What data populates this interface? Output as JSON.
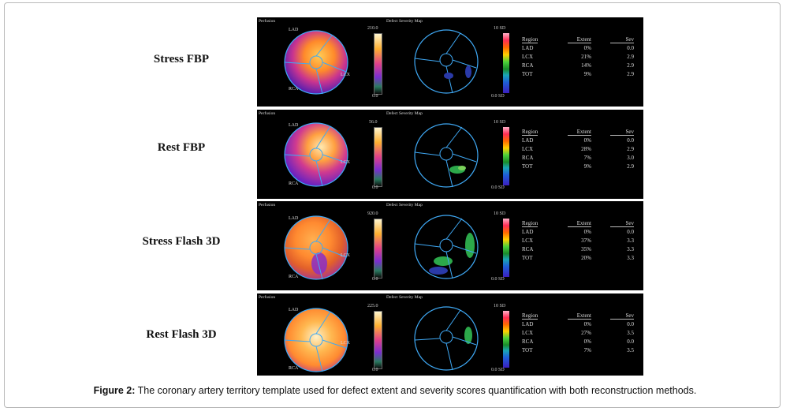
{
  "caption": {
    "label": "Figure 2:",
    "text": " The coronary artery territory template used for defect extent and severity scores quantification with both reconstruction methods."
  },
  "panel_titles": {
    "perfusion": "Perfusion",
    "defect_map": "Defect Severity Map"
  },
  "territory_labels": {
    "lad": "LAD",
    "lcx": "LCX",
    "rca": "RCA"
  },
  "severity_scale": {
    "top": "10 SD",
    "bottom": "0.0 SD"
  },
  "table_headers": {
    "region": "Region",
    "extent": "Extent",
    "sev": "Sev"
  },
  "colors": {
    "panel_bg": "#000000",
    "contour": "#3fa9f5",
    "defect": "#2ca84a"
  },
  "rows": [
    {
      "label": "Stress FBP",
      "scale_max": "210.0",
      "scale_min": "0.0",
      "table": [
        {
          "region": "LAD",
          "extent": "0%",
          "sev": "0.0"
        },
        {
          "region": "LCX",
          "extent": "21%",
          "sev": "2.9"
        },
        {
          "region": "RCA",
          "extent": "14%",
          "sev": "2.9"
        },
        {
          "region": "TOT",
          "extent": "9%",
          "sev": "2.9"
        }
      ]
    },
    {
      "label": "Rest FBP",
      "scale_max": "56.0",
      "scale_min": "0.0",
      "table": [
        {
          "region": "LAD",
          "extent": "0%",
          "sev": "0.0"
        },
        {
          "region": "LCX",
          "extent": "28%",
          "sev": "2.9"
        },
        {
          "region": "RCA",
          "extent": "7%",
          "sev": "3.0"
        },
        {
          "region": "TOT",
          "extent": "9%",
          "sev": "2.9"
        }
      ]
    },
    {
      "label": "Stress Flash 3D",
      "scale_max": "920.0",
      "scale_min": "0.0",
      "table": [
        {
          "region": "LAD",
          "extent": "0%",
          "sev": "0.0"
        },
        {
          "region": "LCX",
          "extent": "37%",
          "sev": "3.3"
        },
        {
          "region": "RCA",
          "extent": "35%",
          "sev": "3.3"
        },
        {
          "region": "TOT",
          "extent": "20%",
          "sev": "3.3"
        }
      ]
    },
    {
      "label": "Rest Flash 3D",
      "scale_max": "225.0",
      "scale_min": "0.0",
      "table": [
        {
          "region": "LAD",
          "extent": "0%",
          "sev": "0.0"
        },
        {
          "region": "LCX",
          "extent": "27%",
          "sev": "3.5"
        },
        {
          "region": "RCA",
          "extent": "0%",
          "sev": "0.0"
        },
        {
          "region": "TOT",
          "extent": "7%",
          "sev": "3.5"
        }
      ]
    }
  ]
}
